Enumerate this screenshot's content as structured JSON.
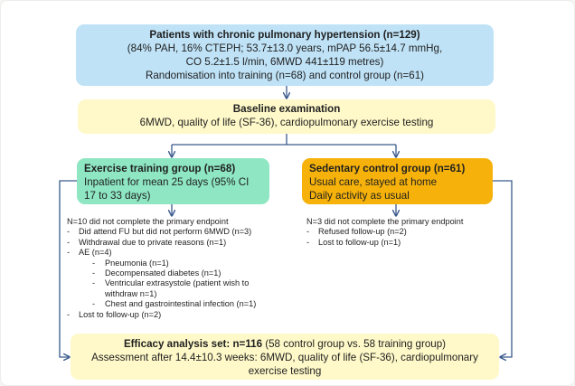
{
  "top_box": {
    "title": "Patients with chronic pulmonary hypertension (n=129)",
    "line2": "(84% PAH,  16% CTEPH;  53.7±13.0 years,  mPAP  56.5±14.7 mmHg,",
    "line3": "CO  5.2±1.5 l/min,  6MWD 441±119 metres)",
    "line4": "Randomisation into training  (n=68) and control group  (n=61)"
  },
  "baseline_box": {
    "title": "Baseline examination",
    "line2": "6MWD, quality of life  (SF-36),  cardiopulmonary  exercise testing"
  },
  "exercise_box": {
    "title": "Exercise training group (n=68)",
    "line2": "Inpatient for mean 25 days (95% CI",
    "line3": "17 to 33 days)"
  },
  "control_box": {
    "title": "Sedentary control group (n=61)",
    "line2": "Usual care, stayed at home",
    "line3": "Daily activity as usual"
  },
  "left_notes": {
    "header": "N=10 did not complete the primary endpoint",
    "item1": "Did attend FU but did not perform 6MWD (n=3)",
    "item2": "Withdrawal due to private reasons (n=1)",
    "item3": "AE (n=4)",
    "sub1": "Pneumonia (n=1)",
    "sub2": "Decompensated diabetes (n=1)",
    "sub3": "Ventricular extrasystole (patient wish to",
    "sub3_cont": "withdraw n=1)",
    "sub4": "Chest and gastrointestinal infection (n=1)",
    "item4": "Lost to follow-up (n=2)"
  },
  "right_notes": {
    "header": "N=3 did not complete the primary endpoint",
    "item1": "Refused follow-up (n=2)",
    "item2": "Lost to follow-up (n=1)"
  },
  "efficacy_box": {
    "title": "Efficacy analysis set: n=116",
    "title_rest": " (58 control group vs. 58 training group)",
    "line2": "Assessment after 14.4±10.3 weeks: 6MWD, quality of life (SF-36), cardiopulmonary",
    "line3": "exercise testing"
  },
  "colors": {
    "top_box": "#bfe2f6",
    "yellow_box": "#fff9c9",
    "exercise_box": "#8ee6c3",
    "control_box": "#f6b20a",
    "arrow": "#3a5a8c"
  }
}
